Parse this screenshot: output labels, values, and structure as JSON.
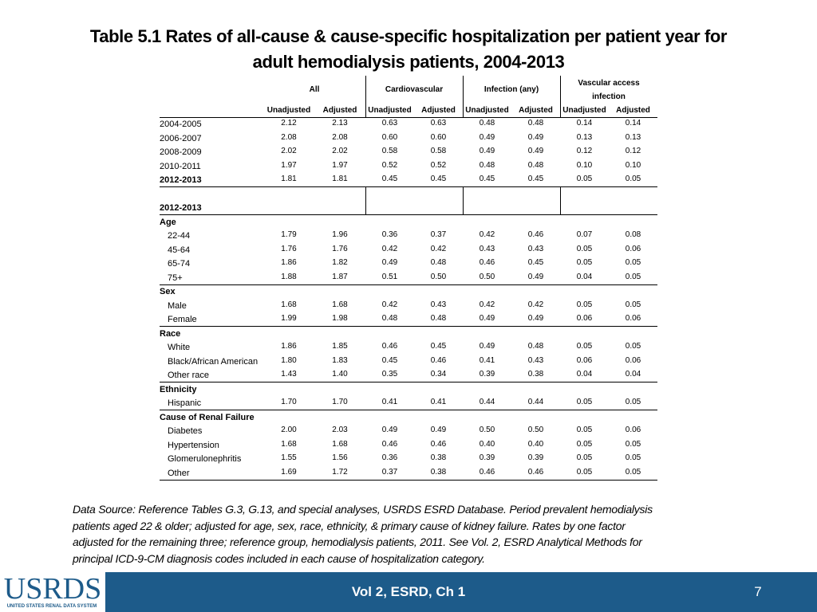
{
  "header": {
    "title": [
      "Table 5.1 Rates of all-cause & cause-specific hospitalization per patient year for",
      "adult hemodialysis patients, 2004-2013"
    ]
  },
  "table": {
    "groups": [
      "All",
      "Cardiovascular",
      "Infection (any)",
      "Vascular access infection"
    ],
    "subheaders": [
      "Unadjusted",
      "Adjusted",
      "Unadjusted",
      "Adjusted",
      "Unadjusted",
      "Adjusted",
      "Unadjusted",
      "Adjusted"
    ],
    "periods": [
      {
        "label": "2004-2005",
        "values": [
          "2.12",
          "2.13",
          "0.63",
          "0.63",
          "0.48",
          "0.48",
          "0.14",
          "0.14"
        ]
      },
      {
        "label": "2006-2007",
        "values": [
          "2.08",
          "2.08",
          "0.60",
          "0.60",
          "0.49",
          "0.49",
          "0.13",
          "0.13"
        ]
      },
      {
        "label": "2008-2009",
        "values": [
          "2.02",
          "2.02",
          "0.58",
          "0.58",
          "0.49",
          "0.49",
          "0.12",
          "0.12"
        ]
      },
      {
        "label": "2010-2011",
        "values": [
          "1.97",
          "1.97",
          "0.52",
          "0.52",
          "0.48",
          "0.48",
          "0.10",
          "0.10"
        ]
      },
      {
        "label": "2012-2013",
        "values": [
          "1.81",
          "1.81",
          "0.45",
          "0.45",
          "0.45",
          "0.45",
          "0.05",
          "0.05"
        ]
      }
    ],
    "subgroup_period": "2012-2013",
    "sections": [
      {
        "title": "Age",
        "rows": [
          {
            "label": "22-44",
            "values": [
              "1.79",
              "1.96",
              "0.36",
              "0.37",
              "0.42",
              "0.46",
              "0.07",
              "0.08"
            ]
          },
          {
            "label": "45-64",
            "values": [
              "1.76",
              "1.76",
              "0.42",
              "0.42",
              "0.43",
              "0.43",
              "0.05",
              "0.06"
            ]
          },
          {
            "label": "65-74",
            "values": [
              "1.86",
              "1.82",
              "0.49",
              "0.48",
              "0.46",
              "0.45",
              "0.05",
              "0.05"
            ]
          },
          {
            "label": "75+",
            "values": [
              "1.88",
              "1.87",
              "0.51",
              "0.50",
              "0.50",
              "0.49",
              "0.04",
              "0.05"
            ]
          }
        ]
      },
      {
        "title": "Sex",
        "rows": [
          {
            "label": "Male",
            "values": [
              "1.68",
              "1.68",
              "0.42",
              "0.43",
              "0.42",
              "0.42",
              "0.05",
              "0.05"
            ]
          },
          {
            "label": "Female",
            "values": [
              "1.99",
              "1.98",
              "0.48",
              "0.48",
              "0.49",
              "0.49",
              "0.06",
              "0.06"
            ]
          }
        ]
      },
      {
        "title": "Race",
        "rows": [
          {
            "label": "White",
            "values": [
              "1.86",
              "1.85",
              "0.46",
              "0.45",
              "0.49",
              "0.48",
              "0.05",
              "0.05"
            ]
          },
          {
            "label": "Black/African American",
            "values": [
              "1.80",
              "1.83",
              "0.45",
              "0.46",
              "0.41",
              "0.43",
              "0.06",
              "0.06"
            ]
          },
          {
            "label": "Other race",
            "values": [
              "1.43",
              "1.40",
              "0.35",
              "0.34",
              "0.39",
              "0.38",
              "0.04",
              "0.04"
            ]
          }
        ]
      },
      {
        "title": "Ethnicity",
        "rows": [
          {
            "label": "Hispanic",
            "values": [
              "1.70",
              "1.70",
              "0.41",
              "0.41",
              "0.44",
              "0.44",
              "0.05",
              "0.05"
            ]
          }
        ]
      },
      {
        "title": "Cause of Renal Failure",
        "rows": [
          {
            "label": "Diabetes",
            "values": [
              "2.00",
              "2.03",
              "0.49",
              "0.49",
              "0.50",
              "0.50",
              "0.05",
              "0.06"
            ]
          },
          {
            "label": "Hypertension",
            "values": [
              "1.68",
              "1.68",
              "0.46",
              "0.46",
              "0.40",
              "0.40",
              "0.05",
              "0.05"
            ]
          },
          {
            "label": "Glomerulonephritis",
            "values": [
              "1.55",
              "1.56",
              "0.36",
              "0.38",
              "0.39",
              "0.39",
              "0.05",
              "0.05"
            ]
          },
          {
            "label": "Other",
            "values": [
              "1.69",
              "1.72",
              "0.37",
              "0.38",
              "0.46",
              "0.46",
              "0.05",
              "0.05"
            ]
          }
        ]
      }
    ]
  },
  "footnote": [
    "Data Source: Reference Tables G.3, G.13, and special analyses, USRDS ESRD Database. Period prevalent hemodialysis",
    "patients aged 22 & older; adjusted for age, sex, race, ethnicity, & primary cause of kidney failure. Rates by one factor",
    "adjusted for the remaining three; reference group, hemodialysis patients, 2011. See Vol. 2, ESRD Analytical Methods for",
    "principal ICD-9-CM diagnosis codes included in each cause of hospitalization category."
  ],
  "footer": {
    "logo": "USRDS",
    "logo_subtitle": "UNITED STATES RENAL DATA SYSTEM",
    "text": "Vol 2, ESRD, Ch 1",
    "page": "7"
  }
}
